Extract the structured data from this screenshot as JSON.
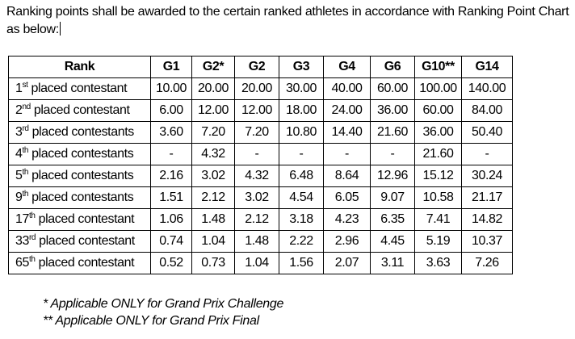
{
  "intro": {
    "text": "Ranking points shall be awarded to the certain ranked athletes in accordance with Ranking Point Chart as below:"
  },
  "table": {
    "headers": [
      "Rank",
      "G1",
      "G2*",
      "G2",
      "G3",
      "G4",
      "G6",
      "G10**",
      "G14"
    ],
    "rows": [
      {
        "ord": "1",
        "suffix": "st",
        "rest": " placed contestant",
        "values": [
          "10.00",
          "20.00",
          "20.00",
          "30.00",
          "40.00",
          "60.00",
          "100.00",
          "140.00"
        ]
      },
      {
        "ord": "2",
        "suffix": "nd",
        "rest": " placed contestant",
        "values": [
          "6.00",
          "12.00",
          "12.00",
          "18.00",
          "24.00",
          "36.00",
          "60.00",
          "84.00"
        ]
      },
      {
        "ord": "3",
        "suffix": "rd",
        "rest": " placed contestants",
        "values": [
          "3.60",
          "7.20",
          "7.20",
          "10.80",
          "14.40",
          "21.60",
          "36.00",
          "50.40"
        ]
      },
      {
        "ord": "4",
        "suffix": "th",
        "rest": " placed contestants",
        "values": [
          "-",
          "4.32",
          "-",
          "-",
          "-",
          "-",
          "21.60",
          "-"
        ]
      },
      {
        "ord": "5",
        "suffix": "th",
        "rest": " placed contestants",
        "values": [
          "2.16",
          "3.02",
          "4.32",
          "6.48",
          "8.64",
          "12.96",
          "15.12",
          "30.24"
        ]
      },
      {
        "ord": "9",
        "suffix": "th",
        "rest": " placed contestants",
        "values": [
          "1.51",
          "2.12",
          "3.02",
          "4.54",
          "6.05",
          "9.07",
          "10.58",
          "21.17"
        ]
      },
      {
        "ord": "17",
        "suffix": "th",
        "rest": " placed contestant",
        "values": [
          "1.06",
          "1.48",
          "2.12",
          "3.18",
          "4.23",
          "6.35",
          "7.41",
          "14.82"
        ]
      },
      {
        "ord": "33",
        "suffix": "rd",
        "rest": " placed contestant",
        "values": [
          "0.74",
          "1.04",
          "1.48",
          "2.22",
          "2.96",
          "4.45",
          "5.19",
          "10.37"
        ]
      },
      {
        "ord": "65",
        "suffix": "th",
        "rest": " placed contestant",
        "values": [
          "0.52",
          "0.73",
          "1.04",
          "1.56",
          "2.07",
          "3.11",
          "3.63",
          "7.26"
        ]
      }
    ]
  },
  "notes": {
    "note1": "* Applicable ONLY for Grand Prix Challenge",
    "note2": "** Applicable ONLY for Grand Prix Final"
  }
}
